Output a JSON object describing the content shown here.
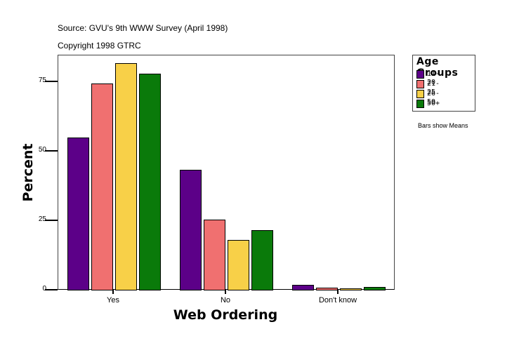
{
  "header": {
    "source": "Source: GVU's 9th WWW Survey (April 1998)",
    "copyright": "Copyright 1998 GTRC"
  },
  "legend": {
    "title": "Age Groups",
    "items": [
      {
        "label": "11-20",
        "color": "#5c0088"
      },
      {
        "label": "21-25",
        "color": "#f07070"
      },
      {
        "label": "26-50",
        "color": "#f8d048"
      },
      {
        "label": "50+",
        "color": "#0a7a0a"
      }
    ]
  },
  "note": "Bars show Means",
  "axes": {
    "xlabel": "Web Ordering",
    "ylabel": "Percent",
    "yticks": [
      "0",
      "25",
      "50",
      "75"
    ],
    "xticks": [
      "Yes",
      "No",
      "Don't know"
    ]
  },
  "chart_data": {
    "type": "bar",
    "title": "",
    "subtitle": "Source: GVU's 9th WWW Survey (April 1998) / Copyright 1998 GTRC",
    "xlabel": "Web Ordering",
    "ylabel": "Percent",
    "categories": [
      "Yes",
      "No",
      "Don't know"
    ],
    "series": [
      {
        "name": "11-20",
        "color": "#5c0088",
        "values": [
          54.8,
          43.2,
          1.8
        ]
      },
      {
        "name": "21-25",
        "color": "#f07070",
        "values": [
          74.2,
          25.3,
          0.8
        ]
      },
      {
        "name": "26-50",
        "color": "#f8d048",
        "values": [
          81.6,
          17.9,
          0.5
        ]
      },
      {
        "name": "50+",
        "color": "#0a7a0a",
        "values": [
          77.8,
          21.5,
          1.0
        ]
      }
    ],
    "ylim": [
      0,
      84.5
    ],
    "yticks": [
      0,
      25,
      50,
      75
    ],
    "grid": false,
    "legend_position": "right",
    "legend_title": "Age Groups",
    "annotation": "Bars show Means"
  }
}
